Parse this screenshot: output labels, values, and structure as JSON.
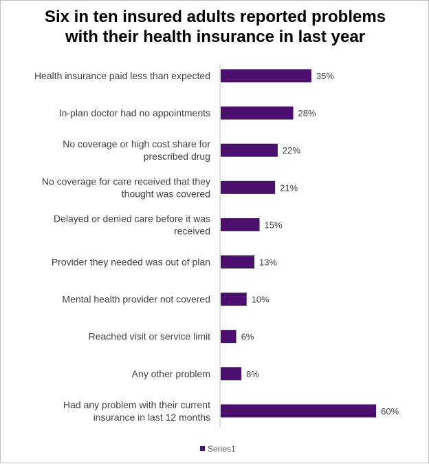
{
  "chart_data": {
    "type": "bar",
    "orientation": "horizontal",
    "title": "Six in ten insured adults reported problems with their health insurance in last year",
    "categories": [
      "Health insurance paid less than expected",
      "In-plan doctor had no appointments",
      "No coverage or high cost share for prescribed drug",
      "No coverage for care received that they thought was covered",
      "Delayed or denied care before it was received",
      "Provider they needed was out of plan",
      "Mental health provider not covered",
      "Reached visit or service limit",
      "Any other problem",
      "Had any problem with their current insurance in last 12 months"
    ],
    "category_label_lines": [
      [
        "Health insurance paid less than expected"
      ],
      [
        "In-plan doctor had no appointments"
      ],
      [
        "No coverage or high cost share for",
        "prescribed drug"
      ],
      [
        "No coverage for care received that they",
        "thought was covered"
      ],
      [
        "Delayed or denied care before it was",
        "received"
      ],
      [
        "Provider they needed was out of plan"
      ],
      [
        "Mental health provider not covered"
      ],
      [
        "Reached visit or service limit"
      ],
      [
        "Any other problem"
      ],
      [
        "Had any problem with their current",
        "insurance in last 12 months"
      ]
    ],
    "series": [
      {
        "name": "Series1",
        "values": [
          35,
          28,
          22,
          21,
          15,
          13,
          10,
          6,
          8,
          60
        ],
        "labels": [
          "35%",
          "28%",
          "22%",
          "21%",
          "15%",
          "13%",
          "10%",
          "6%",
          "8%",
          "60%"
        ]
      }
    ],
    "xlim": [
      0,
      65
    ],
    "grid": false,
    "legend_position": "bottom",
    "colors": {
      "bar": "#4b0f6e",
      "axis": "#bfbfbf",
      "label": "#404040"
    }
  }
}
